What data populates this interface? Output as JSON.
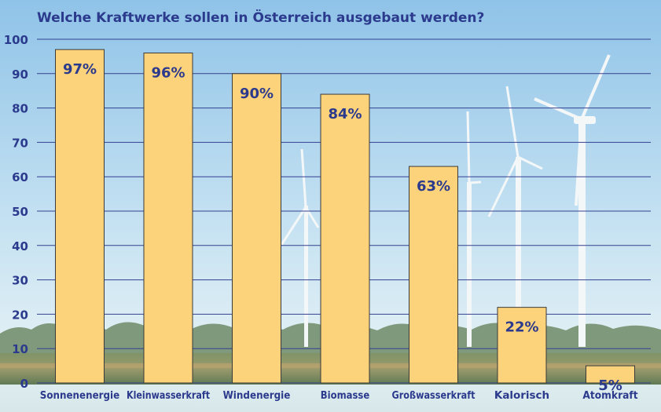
{
  "colors": {
    "title": "#2b3a8c",
    "text": "#2b3a8c",
    "gridline": "#33408f",
    "bar_fill": "#fcd27a",
    "bar_stroke": "#3a3a3a",
    "sky_top": "#9ecbea",
    "sky_bottom": "#dbeef6",
    "ground": "#6a7f58"
  },
  "chart_data": {
    "type": "bar",
    "title": "Welche Kraftwerke sollen in Österreich ausgebaut werden?",
    "xlabel": "",
    "ylabel": "",
    "ylim": [
      0,
      100
    ],
    "yticks": [
      0,
      10,
      20,
      30,
      40,
      50,
      60,
      70,
      80,
      90,
      100
    ],
    "grid": true,
    "categories": [
      "Sonnenenergie",
      "Kleinwasserkraft",
      "Windenergie",
      "Biomasse",
      "Großwasserkraft",
      "Kalorisch",
      "Atomkraft"
    ],
    "values": [
      97,
      96,
      90,
      84,
      63,
      22,
      5
    ],
    "data_labels": [
      "97%",
      "96%",
      "90%",
      "84%",
      "63%",
      "22%",
      "5%"
    ]
  }
}
